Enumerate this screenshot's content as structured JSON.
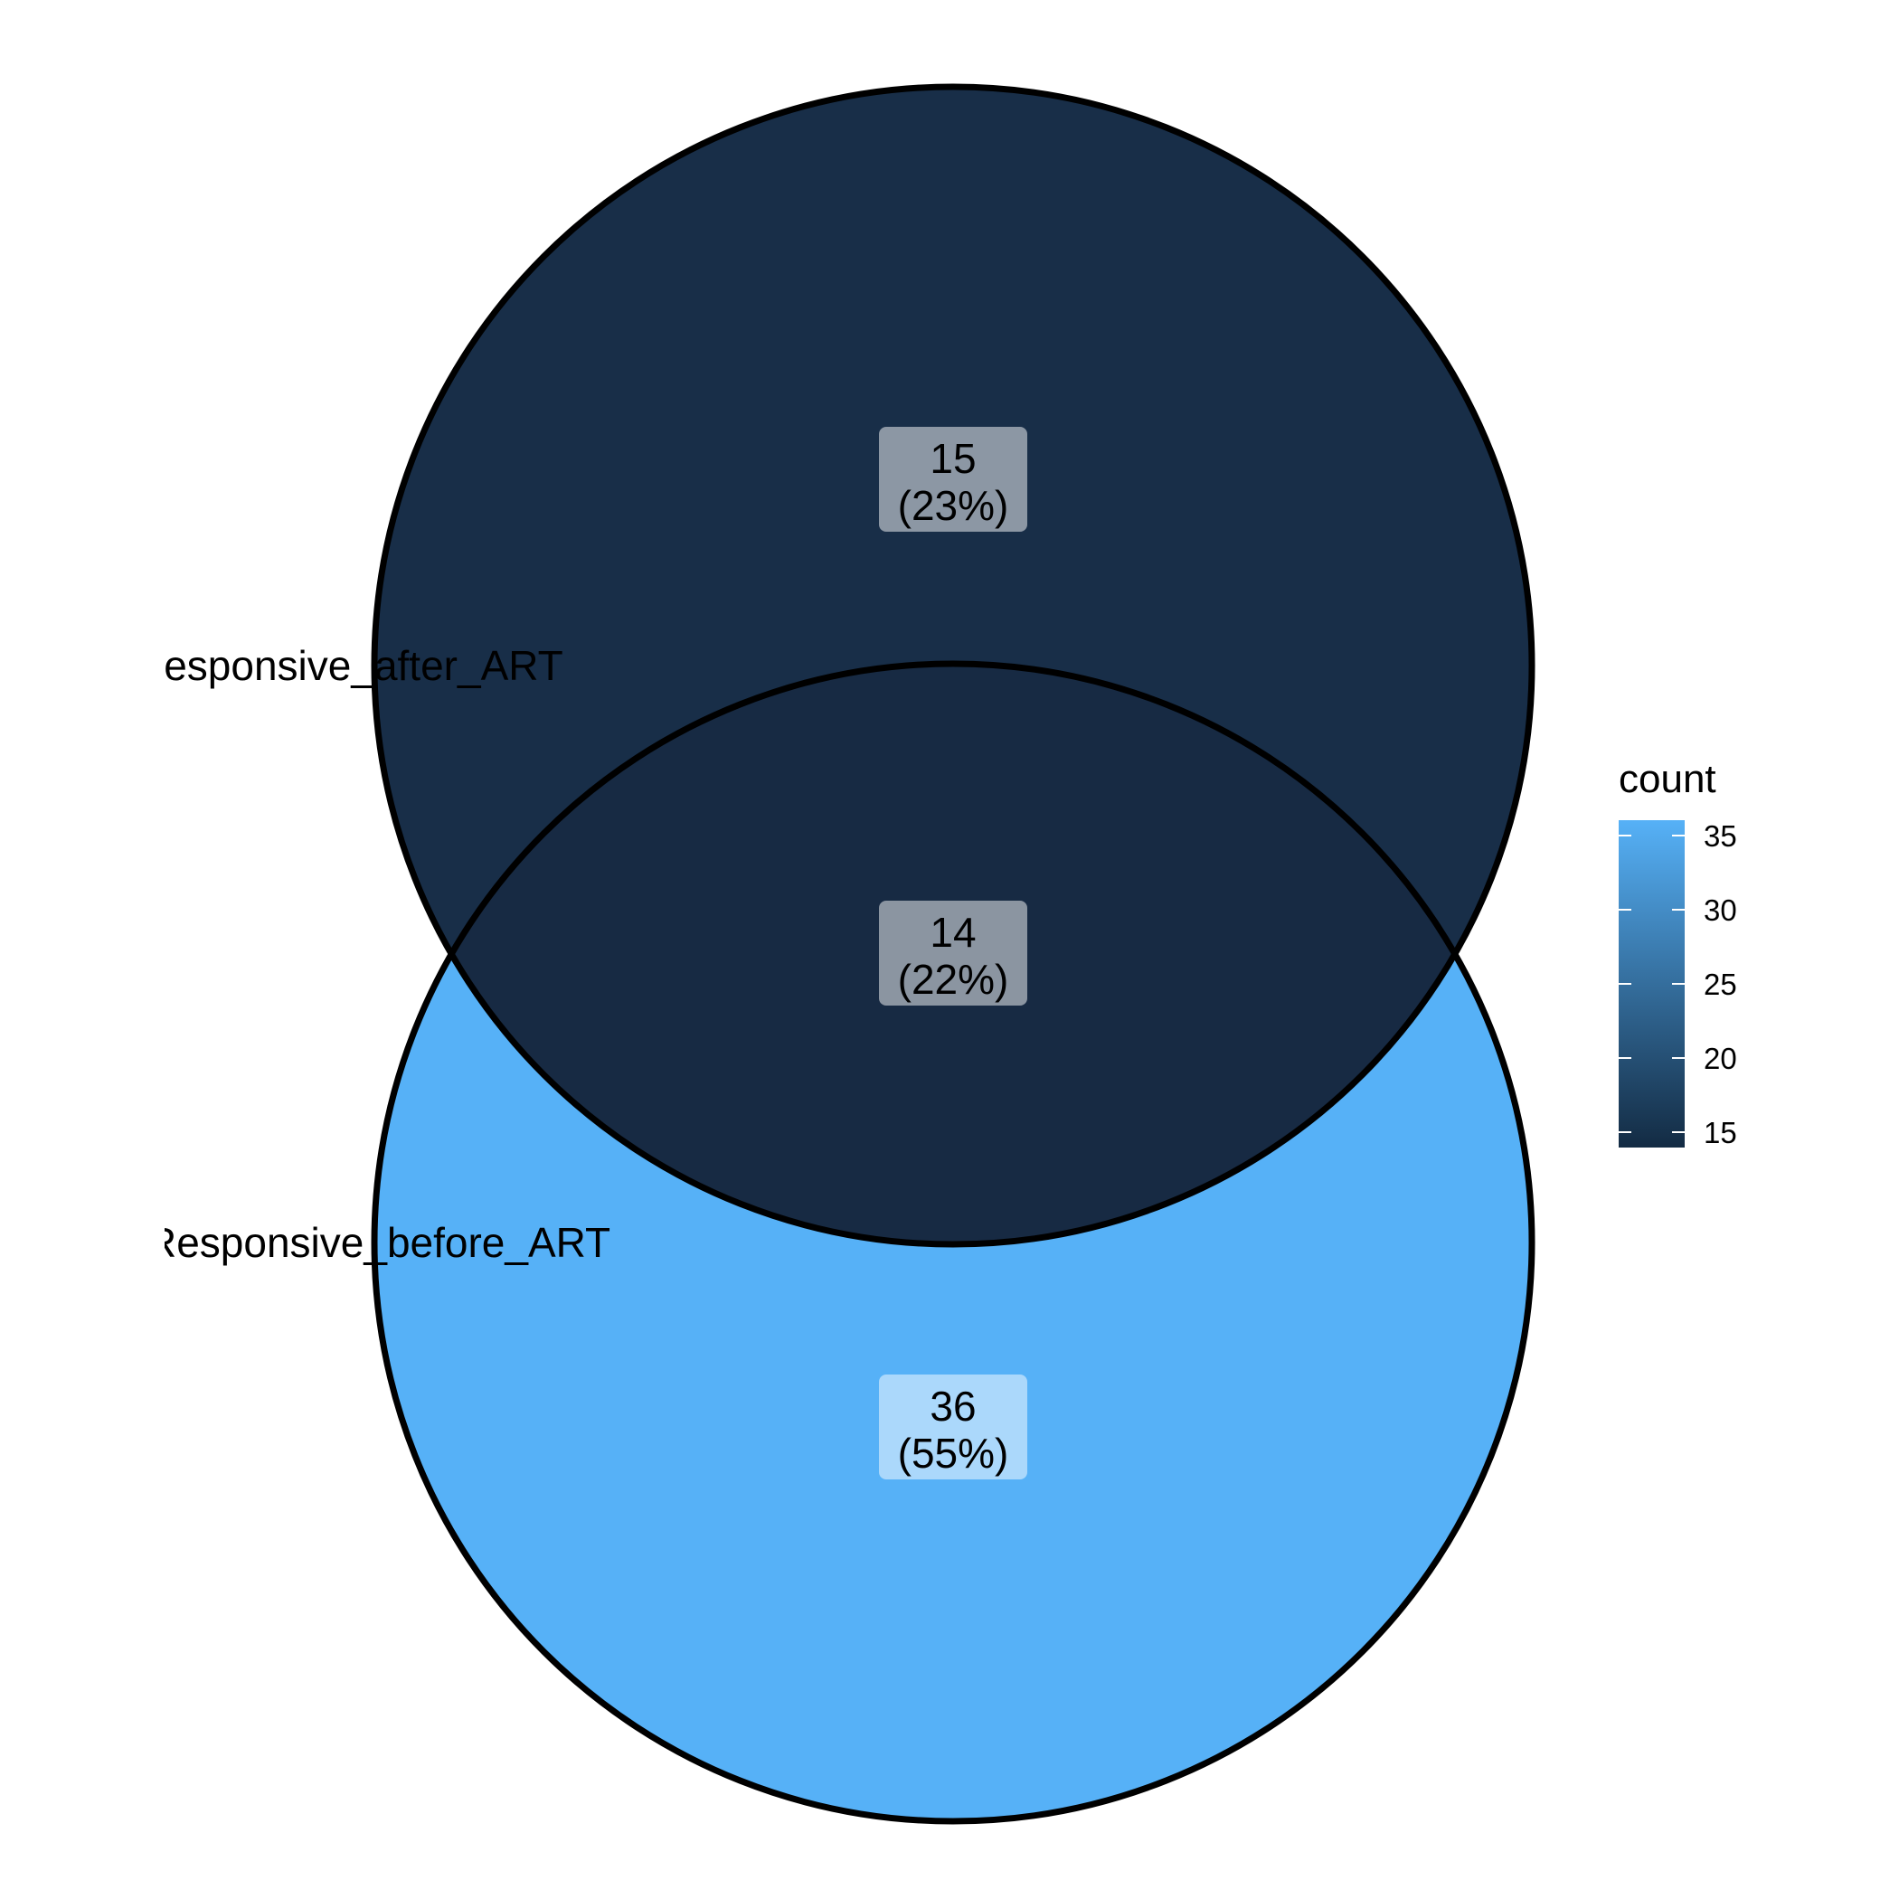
{
  "venn": {
    "sets": [
      {
        "label": "Responsive_after_ART",
        "fill": "#182E48"
      },
      {
        "label": "Responsive_before_ART",
        "fill": "#56B1F7"
      }
    ],
    "regions": [
      {
        "region": "after_only",
        "count": "15",
        "percent": "(23%)",
        "fill": "#182E48"
      },
      {
        "region": "intersection",
        "count": "14",
        "percent": "(22%)",
        "fill": "#172A43"
      },
      {
        "region": "before_only",
        "count": "36",
        "percent": "(55%)",
        "fill": "#56B1F7"
      }
    ]
  },
  "legend": {
    "title": "count",
    "ticks": [
      "35",
      "30",
      "25",
      "20",
      "15"
    ],
    "gradient": {
      "low": "#132B43",
      "high": "#56B1F7",
      "min": 14,
      "max": 36
    }
  }
}
